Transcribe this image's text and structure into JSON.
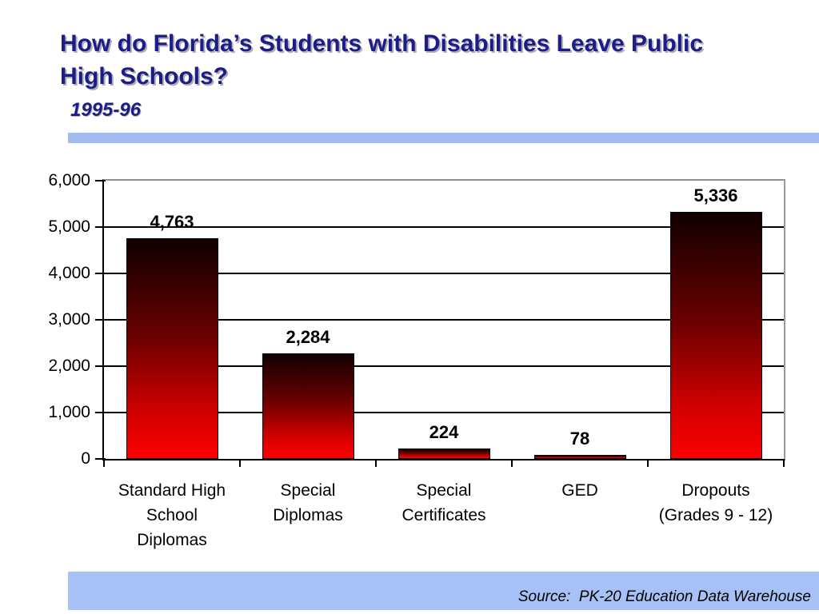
{
  "slide": {
    "title_line1": "How do Florida’s Students with Disabilities Leave Public",
    "title_line2": "High Schools?",
    "subtitle": "1995-96",
    "source_text": "Source:  PK-20 Education Data Warehouse",
    "title_color": "#1c1c8a",
    "accent_bar_color": "#a5c0f3"
  },
  "chart_data": {
    "type": "bar",
    "title": "",
    "xlabel": "",
    "ylabel": "",
    "categories": [
      "Standard High School Diplomas",
      "Special Diplomas",
      "Special Certificates",
      "GED",
      "Dropouts (Grades 9 - 12)"
    ],
    "category_lines": [
      [
        "Standard High",
        "School",
        "Diplomas"
      ],
      [
        "Special",
        "Diplomas"
      ],
      [
        "Special",
        "Certificates"
      ],
      [
        "GED"
      ],
      [
        "Dropouts",
        "(Grades 9 - 12)"
      ]
    ],
    "values": [
      4763,
      2284,
      224,
      78,
      5336
    ],
    "value_labels": [
      "4,763",
      "2,284",
      "224",
      "78",
      "5,336"
    ],
    "y_tick_labels": [
      "0",
      "1,000",
      "2,000",
      "3,000",
      "4,000",
      "5,000",
      "6,000"
    ],
    "y_tick_values": [
      0,
      1000,
      2000,
      3000,
      4000,
      5000,
      6000
    ],
    "ylim": [
      0,
      6000
    ],
    "grid": true,
    "legend": "none",
    "bar_gradient_top": "#100000",
    "bar_gradient_bottom": "#fb0000"
  }
}
